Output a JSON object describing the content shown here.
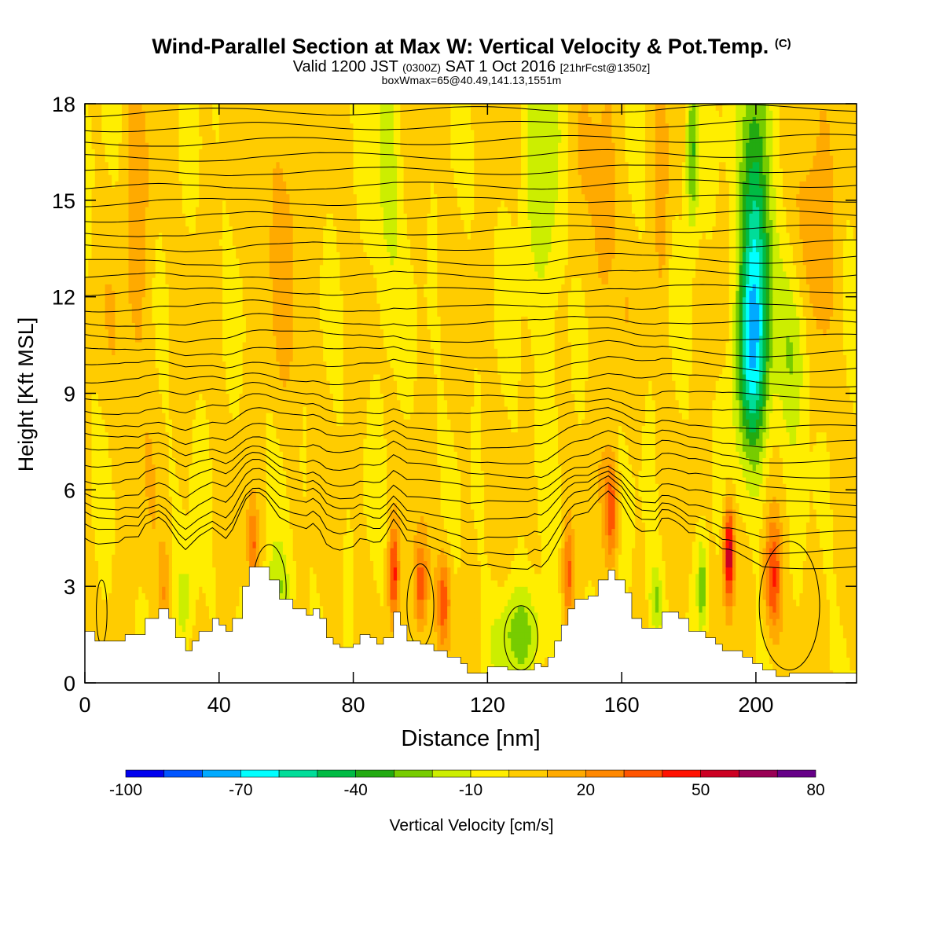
{
  "header": {
    "title_main": "Wind-Parallel Section at Max W: Vertical Velocity & Pot.Temp.",
    "title_mark": "(C)",
    "sub_a": "Valid 1200 JST",
    "sub_b": "(0300Z)",
    "sub_c": "SAT 1 Oct 2016",
    "sub_d": "[21hrFcst@1350z]",
    "line3": "boxWmax=65@40.49,141.13,1551m"
  },
  "chart_data": {
    "type": "heatmap",
    "xlabel": "Distance [nm]",
    "ylabel": "Height [Kft MSL]",
    "xlim": [
      0,
      230
    ],
    "ylim": [
      0,
      18
    ],
    "x_ticks": [
      0,
      40,
      80,
      120,
      160,
      200
    ],
    "y_ticks": [
      0,
      3,
      6,
      9,
      12,
      15,
      18
    ],
    "x_tick_labels": [
      "0",
      "40",
      "80",
      "120",
      "160",
      "200"
    ],
    "y_tick_labels": [
      "0",
      "3",
      "6",
      "9",
      "12",
      "15",
      "18"
    ],
    "colorbar": {
      "label": "Vertical Velocity [cm/s]",
      "min": -100,
      "max": 80,
      "step": 10,
      "tick_values": [
        -100,
        -70,
        -40,
        -10,
        20,
        50,
        80
      ],
      "tick_labels": [
        "-100",
        "-70",
        "-40",
        "-10",
        "20",
        "50",
        "80"
      ],
      "colors": [
        "#0000ee",
        "#0055ff",
        "#00aaff",
        "#00ffff",
        "#00dd99",
        "#00bb44",
        "#22aa11",
        "#77cc00",
        "#ccee00",
        "#ffee00",
        "#ffcc00",
        "#ffaa00",
        "#ff8800",
        "#ff5500",
        "#ff1100",
        "#cc0022",
        "#990055",
        "#660088"
      ]
    },
    "terrain_kft": [
      [
        0,
        1.6
      ],
      [
        3,
        1.3
      ],
      [
        10,
        1.3
      ],
      [
        12,
        1.5
      ],
      [
        16,
        1.5
      ],
      [
        18,
        2.0
      ],
      [
        22,
        2.3
      ],
      [
        25,
        2.0
      ],
      [
        27,
        1.4
      ],
      [
        30,
        1.0
      ],
      [
        32,
        1.3
      ],
      [
        34,
        1.6
      ],
      [
        38,
        2.0
      ],
      [
        40,
        1.8
      ],
      [
        42,
        1.6
      ],
      [
        44,
        2.0
      ],
      [
        47,
        3.0
      ],
      [
        49,
        3.6
      ],
      [
        53,
        3.6
      ],
      [
        55,
        3.2
      ],
      [
        58,
        2.6
      ],
      [
        62,
        2.3
      ],
      [
        66,
        2.1
      ],
      [
        68,
        2.3
      ],
      [
        70,
        2.0
      ],
      [
        72,
        1.4
      ],
      [
        74,
        1.2
      ],
      [
        76,
        1.1
      ],
      [
        80,
        1.2
      ],
      [
        82,
        1.5
      ],
      [
        85,
        1.4
      ],
      [
        87,
        1.2
      ],
      [
        89,
        1.4
      ],
      [
        92,
        2.2
      ],
      [
        94,
        1.8
      ],
      [
        96,
        1.3
      ],
      [
        100,
        1.2
      ],
      [
        104,
        1.0
      ],
      [
        108,
        0.8
      ],
      [
        112,
        0.6
      ],
      [
        114,
        0.3
      ],
      [
        118,
        0.3
      ],
      [
        120,
        0.5
      ],
      [
        126,
        0.4
      ],
      [
        132,
        0.4
      ],
      [
        134,
        0.6
      ],
      [
        136,
        0.5
      ],
      [
        138,
        0.8
      ],
      [
        140,
        1.3
      ],
      [
        142,
        1.8
      ],
      [
        144,
        2.3
      ],
      [
        146,
        2.6
      ],
      [
        150,
        2.7
      ],
      [
        153,
        3.2
      ],
      [
        156,
        3.5
      ],
      [
        158,
        3.2
      ],
      [
        161,
        2.8
      ],
      [
        163,
        2.0
      ],
      [
        166,
        1.7
      ],
      [
        170,
        1.7
      ],
      [
        172,
        2.2
      ],
      [
        174,
        2.2
      ],
      [
        177,
        2.0
      ],
      [
        180,
        1.6
      ],
      [
        183,
        1.6
      ],
      [
        185,
        1.4
      ],
      [
        188,
        1.2
      ],
      [
        190,
        1.0
      ],
      [
        193,
        1.0
      ],
      [
        196,
        0.8
      ],
      [
        199,
        0.6
      ],
      [
        202,
        0.4
      ],
      [
        206,
        0.2
      ],
      [
        210,
        0.3
      ],
      [
        220,
        0.3
      ],
      [
        230,
        0.3
      ]
    ],
    "w_features": [
      {
        "x": 200,
        "z": 14.0,
        "w": -55,
        "sx": 4.5,
        "sz": 6.0
      },
      {
        "x": 198,
        "z": 10.0,
        "w": -38,
        "sx": 5.0,
        "sz": 3.0
      },
      {
        "x": 212,
        "z": 10.5,
        "w": -28,
        "sx": 5.0,
        "sz": 3.0
      },
      {
        "x": 181,
        "z": 16.5,
        "w": -38,
        "sx": 2.0,
        "sz": 2.5
      },
      {
        "x": 130,
        "z": 1.5,
        "w": -26,
        "sx": 8.0,
        "sz": 1.5
      },
      {
        "x": 138,
        "z": 15.0,
        "w": -18,
        "sx": 8.0,
        "sz": 5.0
      },
      {
        "x": 90,
        "z": 15.0,
        "w": -16,
        "sx": 4.0,
        "sz": 5.0
      },
      {
        "x": 58,
        "z": 2.8,
        "w": -20,
        "sx": 4.0,
        "sz": 1.5
      },
      {
        "x": 30,
        "z": 2.5,
        "w": -18,
        "sx": 3.0,
        "sz": 1.5
      },
      {
        "x": 170,
        "z": 2.6,
        "w": -22,
        "sx": 2.0,
        "sz": 1.2
      },
      {
        "x": 184,
        "z": 3.0,
        "w": -30,
        "sx": 1.5,
        "sz": 1.5
      },
      {
        "x": 192,
        "z": 4.0,
        "w": 62,
        "sx": 1.6,
        "sz": 1.6
      },
      {
        "x": 205,
        "z": 3.2,
        "w": 38,
        "sx": 2.5,
        "sz": 1.8
      },
      {
        "x": 217,
        "z": 14.0,
        "w": 18,
        "sx": 6.0,
        "sz": 5.0
      },
      {
        "x": 157,
        "z": 5.4,
        "w": 38,
        "sx": 1.8,
        "sz": 1.5
      },
      {
        "x": 144,
        "z": 3.4,
        "w": 30,
        "sx": 1.5,
        "sz": 1.5
      },
      {
        "x": 92,
        "z": 3.4,
        "w": 40,
        "sx": 1.5,
        "sz": 1.5
      },
      {
        "x": 100,
        "z": 3.0,
        "w": 35,
        "sx": 2.0,
        "sz": 1.5
      },
      {
        "x": 107,
        "z": 2.6,
        "w": 35,
        "sx": 2.0,
        "sz": 1.5
      },
      {
        "x": 50,
        "z": 4.3,
        "w": 28,
        "sx": 1.5,
        "sz": 1.2
      },
      {
        "x": 24,
        "z": 2.8,
        "w": 18,
        "sx": 2.0,
        "sz": 1.5
      },
      {
        "x": 172,
        "z": 16.0,
        "w": 14,
        "sx": 2.0,
        "sz": 4.0
      },
      {
        "x": 145,
        "z": 15.0,
        "w": 12,
        "sx": 4.0,
        "sz": 4.0
      },
      {
        "x": 15,
        "z": 13.0,
        "w": 12,
        "sx": 5.0,
        "sz": 6.0
      },
      {
        "x": 60,
        "z": 15.0,
        "w": 12,
        "sx": 6.0,
        "sz": 5.0
      },
      {
        "x": 155,
        "z": 14.0,
        "w": 14,
        "sx": 4.0,
        "sz": 5.0
      }
    ]
  }
}
